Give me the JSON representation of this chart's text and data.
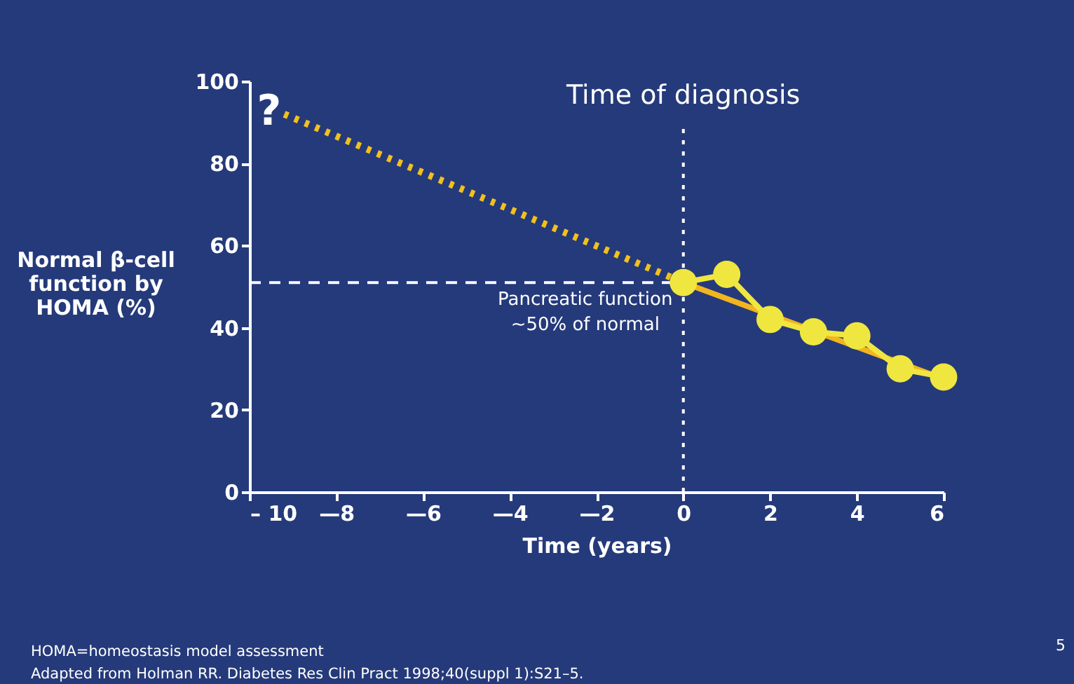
{
  "chart_data": {
    "type": "line",
    "ylabel": "Normal β-cell function by HOMA (%)",
    "xlabel": "Time (years)",
    "series": [
      {
        "color": "#f0e640",
        "marker": "circle",
        "line_style": "solid",
        "x": [
          0,
          1,
          2,
          3,
          4,
          5,
          6
        ],
        "values": [
          51,
          53,
          42,
          39,
          38,
          30,
          28
        ]
      },
      {
        "color": "#f2b51e",
        "marker": "none",
        "line_style": "solid",
        "x": [
          0,
          6
        ],
        "values": [
          51,
          27.5
        ]
      },
      {
        "color": "#f2c01e",
        "marker": "none",
        "line_style": "dotted",
        "x": [
          -9.2,
          0
        ],
        "values": [
          92,
          51
        ]
      }
    ],
    "xlim": [
      -10,
      6
    ],
    "xticks": [
      {
        "value": -10,
        "label": "– 10"
      },
      {
        "value": -8,
        "label": "—8"
      },
      {
        "value": -6,
        "label": "—6"
      },
      {
        "value": -4,
        "label": "—4"
      },
      {
        "value": -2,
        "label": "—2"
      },
      0,
      2,
      4,
      6
    ],
    "ylim": [
      0,
      100
    ],
    "yticks": [
      0,
      20,
      40,
      60,
      80,
      100
    ],
    "ref_lines": [
      {
        "axis": "x",
        "value": 0,
        "label": "Time of diagnosis",
        "color": "#ffffff",
        "line_style": "dotted"
      },
      {
        "axis": "y",
        "value": 51,
        "label": "Pancreatic function ~50% of normal",
        "color": "#ffffff",
        "line_style": "dashed"
      }
    ],
    "annotations": [
      "?",
      "HOMA=homeostasis model assessment",
      "Adapted from Holman RR. Diabetes Res Clin Pract 1998;40(suppl 1):S21–5.",
      "5"
    ],
    "grid": false
  }
}
